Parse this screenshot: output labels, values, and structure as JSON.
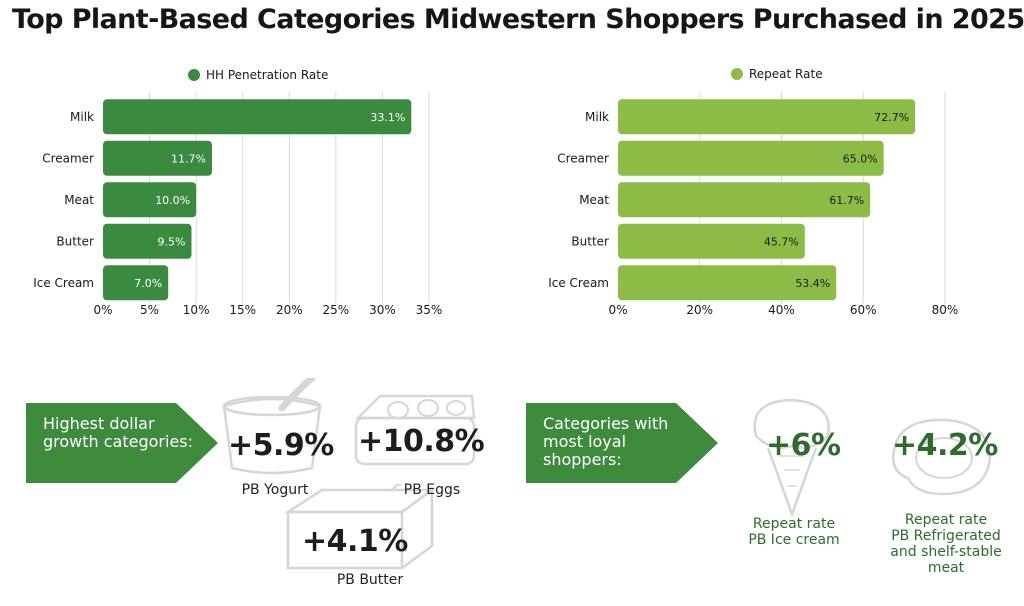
{
  "title": "Top Plant-Based Categories Midwestern Shoppers Purchased in 2025",
  "colors": {
    "dark_green": "#3a8a3f",
    "light_green": "#8cbb46",
    "arrow_green": "#3f8b3e",
    "grid": "#d9d9d9"
  },
  "chart_data": [
    {
      "type": "bar",
      "orientation": "horizontal",
      "categories": [
        "Milk",
        "Creamer",
        "Meat",
        "Butter",
        "Ice Cream"
      ],
      "series": [
        {
          "name": "HH Penetration Rate",
          "values": [
            33.1,
            11.7,
            10.0,
            9.5,
            7.0
          ]
        }
      ],
      "value_labels": [
        "33.1%",
        "11.7%",
        "10.0%",
        "9.5%",
        "7.0%"
      ],
      "xlim": [
        0,
        35
      ],
      "ticks": [
        0,
        5,
        10,
        15,
        20,
        25,
        30,
        35
      ],
      "tick_labels": [
        "0%",
        "5%",
        "10%",
        "15%",
        "20%",
        "25%",
        "30%",
        "35%"
      ],
      "legend": "top",
      "grid": true,
      "color": "#3a8a3f",
      "label_color": "#ffffff"
    },
    {
      "type": "bar",
      "orientation": "horizontal",
      "categories": [
        "Milk",
        "Creamer",
        "Meat",
        "Butter",
        "Ice Cream"
      ],
      "series": [
        {
          "name": "Repeat Rate",
          "values": [
            72.7,
            65.0,
            61.7,
            45.7,
            53.4
          ]
        }
      ],
      "value_labels": [
        "72.7%",
        "65.0%",
        "61.7%",
        "45.7%",
        "53.4%"
      ],
      "xlim": [
        0,
        80
      ],
      "ticks": [
        0,
        20,
        40,
        60,
        80
      ],
      "tick_labels": [
        "0%",
        "20%",
        "40%",
        "60%",
        "80%"
      ],
      "legend": "top",
      "grid": true,
      "color": "#8cbb46",
      "label_color": "#1a1a1a"
    }
  ],
  "growth": {
    "label": "Highest dollar growth categories:",
    "items": [
      {
        "value": "+5.9%",
        "name": "PB Yogurt",
        "icon": "yogurt-cup-icon"
      },
      {
        "value": "+10.8%",
        "name": "PB Eggs",
        "icon": "egg-carton-icon"
      },
      {
        "value": "+4.1%",
        "name": "PB Butter",
        "icon": "butter-dish-icon"
      }
    ]
  },
  "loyal": {
    "label": "Categories with most loyal shoppers:",
    "items": [
      {
        "value": "+6%",
        "line1": "Repeat rate",
        "line2": "PB Ice cream",
        "line3": "",
        "icon": "ice-cream-cone-icon"
      },
      {
        "value": "+4.2%",
        "line1": "Repeat rate",
        "line2": "PB Refrigerated",
        "line3": "and shelf-stable meat",
        "icon": "steak-icon"
      }
    ]
  }
}
